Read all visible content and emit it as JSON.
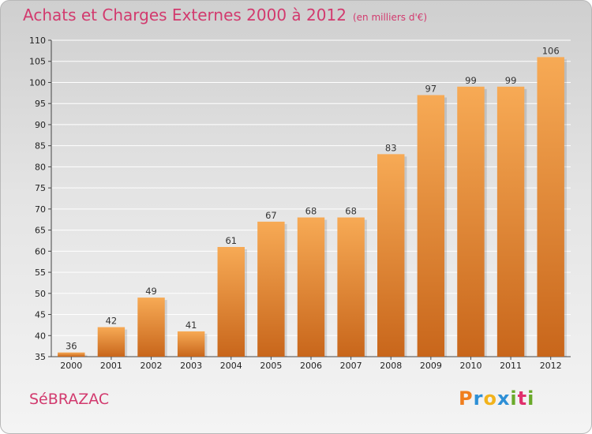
{
  "header": {
    "title": "Achats et Charges Externes 2000 à 2012",
    "unit": "(en milliers d'€)"
  },
  "footer": {
    "commune": "SéBRAZAC",
    "brand": "Proxiti",
    "brand_colors": [
      "#f07e1e",
      "#2d8fd6",
      "#f2b31c",
      "#2d8fd6",
      "#6aaa2a",
      "#e0306c",
      "#6aaa2a"
    ]
  },
  "colors": {
    "bar_light": "#f7aa55",
    "bar_dark": "#c8661b",
    "grid": "#ffffff",
    "title": "#d23a6e"
  },
  "chart_data": {
    "type": "bar",
    "title": "Achats et Charges Externes 2000 à 2012",
    "subtitle": "(en milliers d'€)",
    "categories": [
      "2000",
      "2001",
      "2002",
      "2003",
      "2004",
      "2005",
      "2006",
      "2007",
      "2008",
      "2009",
      "2010",
      "2011",
      "2012"
    ],
    "values": [
      36,
      42,
      49,
      41,
      61,
      67,
      68,
      68,
      83,
      97,
      99,
      99,
      106
    ],
    "ylim": [
      35,
      110
    ],
    "yticks": [
      35,
      40,
      45,
      50,
      55,
      60,
      65,
      70,
      75,
      80,
      85,
      90,
      95,
      100,
      105,
      110
    ],
    "grid": true,
    "xlabel": "",
    "ylabel": ""
  }
}
